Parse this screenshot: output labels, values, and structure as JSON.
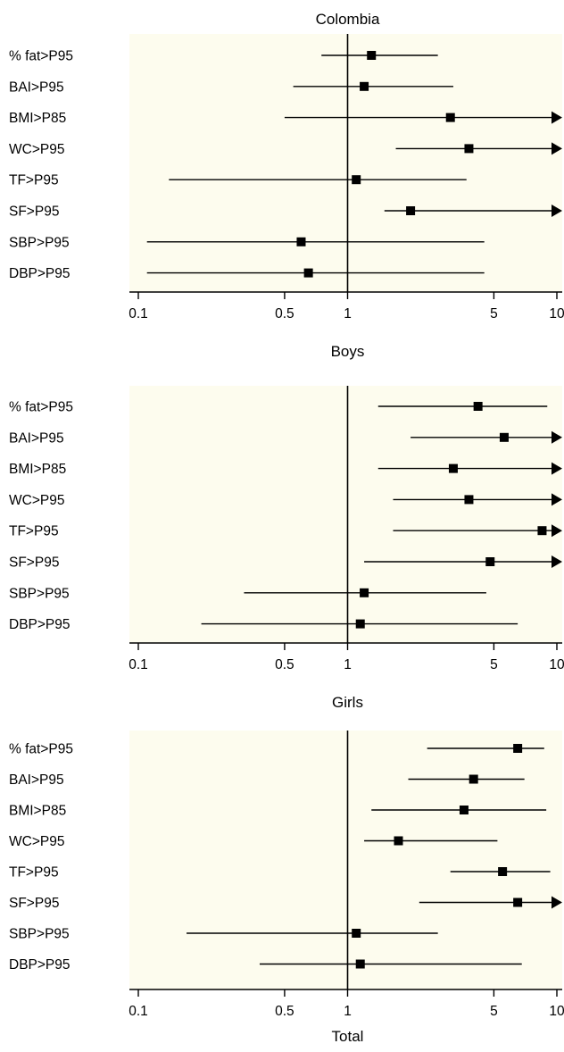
{
  "chart_data": [
    {
      "type": "forest",
      "title": "Colombia",
      "xscale": "log",
      "xlim": [
        0.1,
        10
      ],
      "xticks": [
        "0.1",
        "0.5",
        "1",
        "5",
        "10"
      ],
      "reference_line": 1,
      "background": "#fdfcee",
      "rows": [
        {
          "label": "% fat>P95",
          "estimate": 1.3,
          "lower": 0.75,
          "upper": 2.7,
          "arrow": false
        },
        {
          "label": "BAI>P95",
          "estimate": 1.2,
          "lower": 0.55,
          "upper": 3.2,
          "arrow": false
        },
        {
          "label": "BMI>P85",
          "estimate": 3.1,
          "lower": 0.5,
          "upper": 10,
          "arrow": true
        },
        {
          "label": "WC>P95",
          "estimate": 3.8,
          "lower": 1.7,
          "upper": 10,
          "arrow": true
        },
        {
          "label": "TF>P95",
          "estimate": 1.1,
          "lower": 0.14,
          "upper": 3.7,
          "arrow": false
        },
        {
          "label": "SF>P95",
          "estimate": 2.0,
          "lower": 1.5,
          "upper": 10,
          "arrow": true
        },
        {
          "label": "SBP>P95",
          "estimate": 0.6,
          "lower": 0.11,
          "upper": 4.5,
          "arrow": false
        },
        {
          "label": "DBP>P95",
          "estimate": 0.65,
          "lower": 0.11,
          "upper": 4.5,
          "arrow": false
        }
      ]
    },
    {
      "type": "forest",
      "title": "Boys",
      "xscale": "log",
      "xlim": [
        0.1,
        10
      ],
      "xticks": [
        "0.1",
        "0.5",
        "1",
        "5",
        "10"
      ],
      "reference_line": 1,
      "background": "#fdfcee",
      "rows": [
        {
          "label": "% fat>P95",
          "estimate": 4.2,
          "lower": 1.4,
          "upper": 9.0,
          "arrow": false
        },
        {
          "label": "BAI>P95",
          "estimate": 5.6,
          "lower": 2.0,
          "upper": 10,
          "arrow": true
        },
        {
          "label": "BMI>P85",
          "estimate": 3.2,
          "lower": 1.4,
          "upper": 10,
          "arrow": true
        },
        {
          "label": "WC>P95",
          "estimate": 3.8,
          "lower": 1.65,
          "upper": 10,
          "arrow": true
        },
        {
          "label": "TF>P95",
          "estimate": 8.5,
          "lower": 1.65,
          "upper": 10,
          "arrow": true
        },
        {
          "label": "SF>P95",
          "estimate": 4.8,
          "lower": 1.2,
          "upper": 10,
          "arrow": true
        },
        {
          "label": "SBP>P95",
          "estimate": 1.2,
          "lower": 0.32,
          "upper": 4.6,
          "arrow": false
        },
        {
          "label": "DBP>P95",
          "estimate": 1.15,
          "lower": 0.2,
          "upper": 6.5,
          "arrow": false
        }
      ]
    },
    {
      "type": "forest",
      "title": "Girls",
      "xscale": "log",
      "xlim": [
        0.1,
        10
      ],
      "xticks": [
        "0.1",
        "0.5",
        "1",
        "5",
        "10"
      ],
      "reference_line": 1,
      "background": "#fdfcee",
      "xlabel": "Total",
      "rows": [
        {
          "label": "% fat>P95",
          "estimate": 6.5,
          "lower": 2.4,
          "upper": 8.7,
          "arrow": false
        },
        {
          "label": "BAI>P95",
          "estimate": 4.0,
          "lower": 1.95,
          "upper": 7.0,
          "arrow": false
        },
        {
          "label": "BMI>P85",
          "estimate": 3.6,
          "lower": 1.3,
          "upper": 8.9,
          "arrow": false
        },
        {
          "label": "WC>P95",
          "estimate": 1.75,
          "lower": 1.2,
          "upper": 5.2,
          "arrow": false
        },
        {
          "label": "TF>P95",
          "estimate": 5.5,
          "lower": 3.1,
          "upper": 9.3,
          "arrow": false
        },
        {
          "label": "SF>P95",
          "estimate": 6.5,
          "lower": 2.2,
          "upper": 10,
          "arrow": true
        },
        {
          "label": "SBP>P95",
          "estimate": 1.1,
          "lower": 0.17,
          "upper": 2.7,
          "arrow": false
        },
        {
          "label": "DBP>P95",
          "estimate": 1.15,
          "lower": 0.38,
          "upper": 6.8,
          "arrow": false
        }
      ]
    }
  ]
}
